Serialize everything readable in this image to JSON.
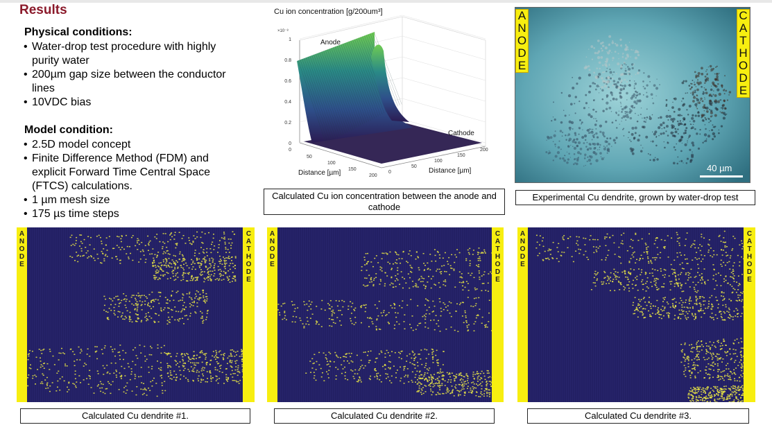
{
  "slide": {
    "title": "Results",
    "physical": {
      "heading": "Physical conditions:",
      "items": [
        "Water-drop test procedure with highly purity water",
        "200µm gap size between the conductor lines",
        "10VDC bias"
      ]
    },
    "model": {
      "heading": "Model condition:",
      "items": [
        "2.5D model concept",
        "Finite Difference Method (FDM) and explicit Forward Time Central Space (FTCS) calculations.",
        "1 µm mesh size",
        "175 µs time steps"
      ]
    }
  },
  "chart_data": {
    "type": "surface",
    "title": "Cu ion concentration [g/200um³]",
    "exponent_label": "×10⁻⁸",
    "z_ticks": [
      "0",
      "0.2",
      "0.4",
      "0.6",
      "0.8",
      "1"
    ],
    "x_ticks": [
      "50",
      "100",
      "150",
      "200"
    ],
    "y_ticks": [
      "0",
      "50",
      "100",
      "150",
      "200"
    ],
    "z_corner": "0",
    "xlabel": "Distance [µm]",
    "ylabel": "Distance [µm]",
    "annotations": [
      "Anode",
      "Cathode"
    ],
    "zlim": [
      0,
      1
    ]
  },
  "captions": {
    "chart": "Calculated Cu ion concentration between the anode and cathode",
    "photo": "Experimental Cu dendrite, grown by water-drop test",
    "sim1": "Calculated Cu dendrite #1.",
    "sim2": "Calculated Cu dendrite #2.",
    "sim3": "Calculated Cu dendrite #3."
  },
  "photo": {
    "anode_letters": [
      "A",
      "N",
      "O",
      "D",
      "E"
    ],
    "cathode_letters": [
      "C",
      "A",
      "T",
      "H",
      "O",
      "D",
      "E"
    ],
    "scale_label": "40 µm"
  },
  "sim_labels": {
    "anode_letters": [
      "A",
      "N",
      "O",
      "D",
      "E"
    ],
    "cathode_letters": [
      "C",
      "A",
      "T",
      "H",
      "O",
      "D",
      "E"
    ]
  },
  "colors": {
    "title": "#8b1a2b",
    "grid_bg": "#27246b",
    "dendrite": "#e3e046",
    "electrode": "#f7ee10"
  }
}
